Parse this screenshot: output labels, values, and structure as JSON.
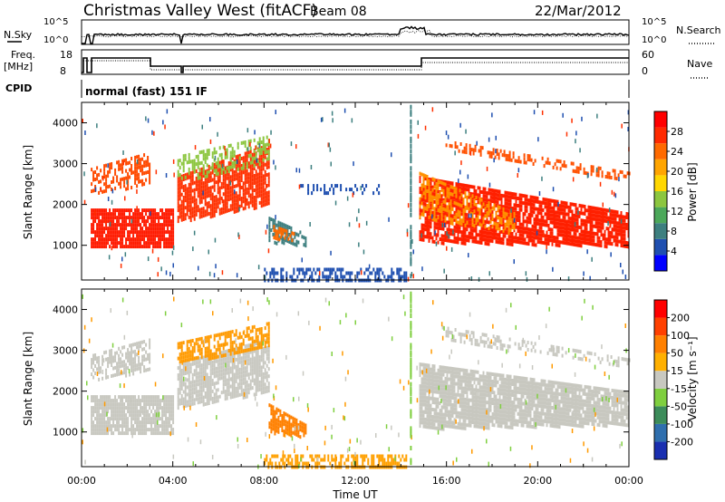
{
  "header": {
    "station": "Christmas Valley West (fitACF)",
    "beam": "Beam 08",
    "date": "22/Mar/2012"
  },
  "panels": {
    "nsky_label": "N.Sky",
    "nsearch_label": "N.Search",
    "noise_ticks": [
      "10^5",
      "10^0"
    ],
    "freq_label_line1": "Freq.",
    "freq_label_line2": "[MHz]",
    "freq_ticks": [
      "18",
      "8"
    ],
    "nave_label": "Nave",
    "nave_ticks": [
      "60",
      "0"
    ],
    "cpid_label": "CPID",
    "cpid_value": "normal (fast) 151 IF"
  },
  "colorbars": {
    "power": {
      "label": "Power [dB]",
      "ticks": [
        "28",
        "24",
        "20",
        "16",
        "12",
        "8",
        "4"
      ],
      "colors": [
        "#0000ff",
        "#1f4fb0",
        "#3d7f7f",
        "#4ca85a",
        "#8cc63f",
        "#ffd700",
        "#ffa500",
        "#ff6a00",
        "#ff2a00",
        "#ff0000"
      ]
    },
    "velocity": {
      "label": "Velocity [m s⁻¹]",
      "ticks": [
        "200",
        "100",
        "50",
        "15",
        "-15",
        "-50",
        "-100",
        "-200"
      ],
      "colors": [
        "#1a2fb0",
        "#2f6fae",
        "#3c8c5a",
        "#7fcf3f",
        "#c8c8c0",
        "#ffb000",
        "#ff8000",
        "#ff4000",
        "#ff0000"
      ]
    }
  },
  "chart_data": [
    {
      "type": "heatmap",
      "name": "power",
      "ylabel": "Slant Range [km]",
      "yticks": [
        1000,
        2000,
        3000,
        4000
      ],
      "ylim": [
        150,
        4500
      ],
      "xlim": [
        0,
        24
      ],
      "bands": [
        {
          "t0": 0.4,
          "t1": 4.0,
          "r0": 1000,
          "r1": 1900,
          "rend0": 1000,
          "rend1": 1900,
          "color": "#ff1a00",
          "density": 0.85
        },
        {
          "t0": 0.4,
          "t1": 3.0,
          "r0": 2300,
          "r1": 2900,
          "rend0": 2500,
          "rend1": 3300,
          "color": "#ff4a00",
          "density": 0.55
        },
        {
          "t0": 4.2,
          "t1": 8.2,
          "r0": 1600,
          "r1": 2700,
          "rend0": 2000,
          "rend1": 3500,
          "color": "#ff3000",
          "density": 0.8
        },
        {
          "t0": 4.2,
          "t1": 8.2,
          "r0": 2600,
          "r1": 3200,
          "rend0": 3000,
          "rend1": 3700,
          "color": "#8cc63f",
          "density": 0.45
        },
        {
          "t0": 8.2,
          "t1": 9.8,
          "r0": 1100,
          "r1": 1700,
          "rend0": 1000,
          "rend1": 1300,
          "color": "#3d7f7f",
          "density": 0.7
        },
        {
          "t0": 8.4,
          "t1": 9.4,
          "r0": 1200,
          "r1": 1500,
          "rend0": 1100,
          "rend1": 1300,
          "color": "#ff6a00",
          "density": 0.6
        },
        {
          "t0": 9.5,
          "t1": 13.0,
          "r0": 2300,
          "r1": 2500,
          "rend0": 2300,
          "rend1": 2500,
          "color": "#1f4fb0",
          "density": 0.25
        },
        {
          "t0": 8.0,
          "t1": 14.2,
          "r0": 150,
          "r1": 450,
          "rend0": 150,
          "rend1": 450,
          "color": "#1f4fb0",
          "density": 0.55
        },
        {
          "t0": 14.8,
          "t1": 24.0,
          "r0": 1100,
          "r1": 2700,
          "rend0": 1000,
          "rend1": 1800,
          "color": "#ff2000",
          "density": 0.85
        },
        {
          "t0": 14.8,
          "t1": 19.0,
          "r0": 1700,
          "r1": 2800,
          "rend0": 1300,
          "rend1": 1800,
          "color": "#ff9000",
          "density": 0.5
        },
        {
          "t0": 15.8,
          "t1": 24.0,
          "r0": 3400,
          "r1": 3600,
          "rend0": 2600,
          "rend1": 2800,
          "color": "#ff5000",
          "density": 0.45
        }
      ]
    },
    {
      "type": "heatmap",
      "name": "velocity",
      "ylabel": "Slant Range [km]",
      "xlabel": "Time UT",
      "xticks": [
        "00:00",
        "04:00",
        "08:00",
        "12:00",
        "16:00",
        "20:00",
        "00:00"
      ],
      "yticks": [
        1000,
        2000,
        3000,
        4000
      ],
      "ylim": [
        150,
        4500
      ],
      "xlim": [
        0,
        24
      ],
      "bands": [
        {
          "t0": 0.4,
          "t1": 4.0,
          "r0": 1000,
          "r1": 1900,
          "rend0": 1000,
          "rend1": 1900,
          "color": "#c8c8c0",
          "density": 0.9
        },
        {
          "t0": 0.4,
          "t1": 3.0,
          "r0": 2300,
          "r1": 2900,
          "rend0": 2500,
          "rend1": 3300,
          "color": "#c8c8c0",
          "density": 0.6
        },
        {
          "t0": 4.2,
          "t1": 8.2,
          "r0": 1600,
          "r1": 2700,
          "rend0": 2000,
          "rend1": 3300,
          "color": "#c8c8c0",
          "density": 0.8
        },
        {
          "t0": 4.2,
          "t1": 8.2,
          "r0": 2700,
          "r1": 3200,
          "rend0": 3100,
          "rend1": 3700,
          "color": "#ff9a00",
          "density": 0.6
        },
        {
          "t0": 8.2,
          "t1": 9.8,
          "r0": 1000,
          "r1": 1700,
          "rend0": 900,
          "rend1": 1200,
          "color": "#ff8000",
          "density": 0.85
        },
        {
          "t0": 8.0,
          "t1": 14.2,
          "r0": 150,
          "r1": 450,
          "rend0": 150,
          "rend1": 450,
          "color": "#ffa000",
          "density": 0.6
        },
        {
          "t0": 14.8,
          "t1": 24.0,
          "r0": 1100,
          "r1": 2700,
          "rend0": 1200,
          "rend1": 2000,
          "color": "#c8c8c0",
          "density": 0.9
        },
        {
          "t0": 15.8,
          "t1": 24.0,
          "r0": 3300,
          "r1": 3600,
          "rend0": 2600,
          "rend1": 2800,
          "color": "#c8c8c0",
          "density": 0.4
        }
      ]
    }
  ]
}
